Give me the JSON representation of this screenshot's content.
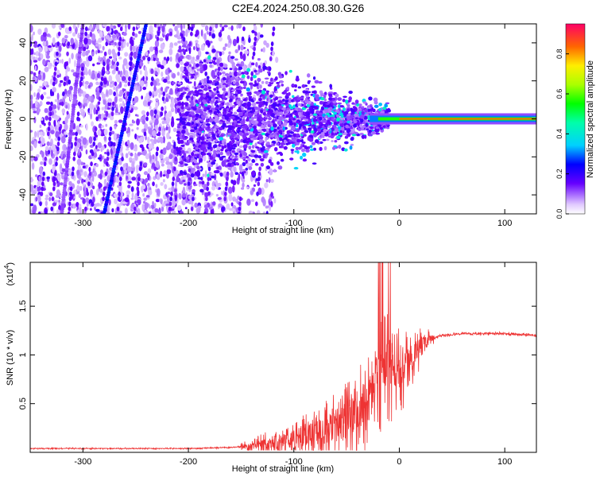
{
  "title": "C2E4.2024.250.08.30.G26",
  "chart_data": [
    {
      "type": "heatmap",
      "xlabel": "Height of straight line (km)",
      "ylabel": "Frequency (Hz)",
      "xlim": [
        -350,
        130
      ],
      "ylim": [
        -50,
        50
      ],
      "xticks": [
        -300,
        -200,
        -100,
        0,
        100
      ],
      "yticks": [
        -40,
        -20,
        0,
        20,
        40
      ],
      "colorbar": {
        "label": "Normalized spectral amplitude",
        "range": [
          0,
          0.95
        ],
        "ticks": [
          0.0,
          0.2,
          0.4,
          0.6,
          0.8
        ]
      },
      "features": {
        "main_signal_frequency": 0,
        "scattered_noise_until_height": -140,
        "diagonal_tracks": [
          {
            "x": [
              -280,
              -240
            ],
            "y": [
              -50,
              50
            ],
            "amplitude": 0.25
          },
          {
            "x": [
              -320,
              -300
            ],
            "y": [
              -50,
              50
            ],
            "amplitude": 0.12
          }
        ]
      }
    },
    {
      "type": "line",
      "xlabel": "Height of straight line (km)",
      "ylabel": "SNR (10 * v/v)",
      "y_multiplier": "(x10",
      "y_multiplier_exp": "4",
      "xlim": [
        -350,
        130
      ],
      "ylim": [
        0,
        1.95
      ],
      "xticks": [
        -300,
        -200,
        -100,
        0,
        100
      ],
      "yticks": [
        0.5,
        1.0,
        1.5
      ],
      "color": "#ee3333",
      "series": [
        {
          "x": [
            -350,
            -300,
            -250,
            -200,
            -160,
            -140,
            -120,
            -100,
            -80,
            -60,
            -40,
            -30,
            -20,
            -15,
            -10,
            0,
            10,
            20,
            30,
            40,
            60,
            80,
            100,
            130
          ],
          "y": [
            0.04,
            0.04,
            0.04,
            0.04,
            0.05,
            0.07,
            0.1,
            0.15,
            0.2,
            0.28,
            0.42,
            0.55,
            0.75,
            0.9,
            0.95,
            0.85,
            0.98,
            1.1,
            1.17,
            1.2,
            1.22,
            1.22,
            1.22,
            1.2
          ]
        }
      ]
    }
  ]
}
